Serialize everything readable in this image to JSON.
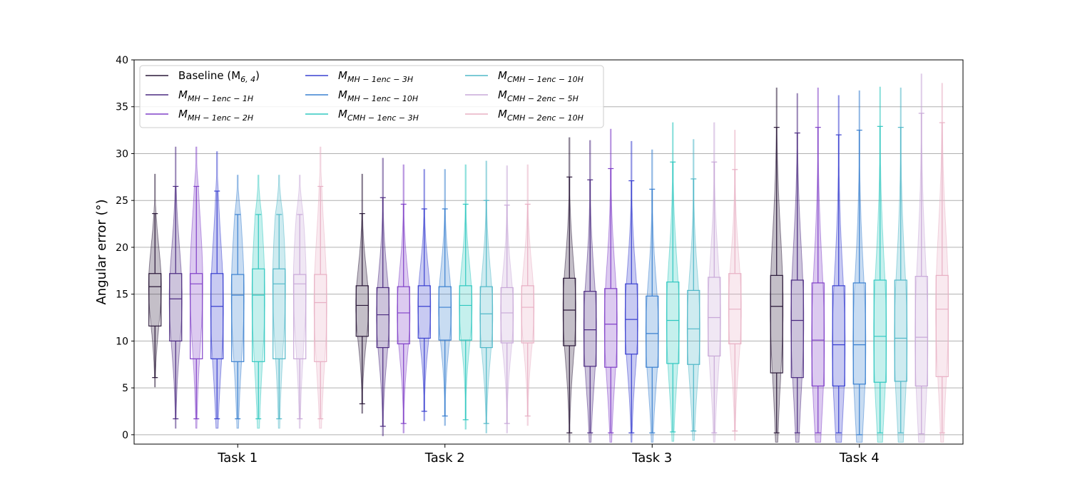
{
  "chart_data": {
    "type": "box_violin",
    "title": "",
    "xlabel": "",
    "ylabel": "Angular error (°)",
    "ylim": [
      -1,
      40
    ],
    "yticks": [
      0,
      5,
      10,
      15,
      20,
      25,
      30,
      35,
      40
    ],
    "grid": "y",
    "legend_position": "top-left",
    "categories": [
      "Task 1",
      "Task 2",
      "Task 3",
      "Task 4"
    ],
    "series": [
      {
        "name": "Baseline ($M_{6,4}$)",
        "legend_main": "Baseline (M",
        "legend_sub": "6, 4",
        "legend_tail": ")",
        "color": "#2a1838",
        "boxes": [
          {
            "min": 6.1,
            "q1": 11.6,
            "median": 15.8,
            "q3": 17.2,
            "max": 23.6
          },
          {
            "min": 3.3,
            "q1": 10.5,
            "median": 13.8,
            "q3": 15.9,
            "max": 23.6
          },
          {
            "min": 0.2,
            "q1": 9.5,
            "median": 13.3,
            "q3": 16.7,
            "max": 27.5
          },
          {
            "min": 0.2,
            "q1": 6.6,
            "median": 13.7,
            "q3": 17.0,
            "max": 32.8
          }
        ]
      },
      {
        "name": "$M_{MH-1enc-1H}$",
        "legend_main": "M",
        "legend_sub": "MH − 1enc − 1H",
        "legend_tail": "",
        "color": "#4b2a80",
        "boxes": [
          {
            "min": 1.7,
            "q1": 10.0,
            "median": 14.5,
            "q3": 17.2,
            "max": 26.5
          },
          {
            "min": 0.9,
            "q1": 9.3,
            "median": 12.8,
            "q3": 15.7,
            "max": 25.3
          },
          {
            "min": 0.2,
            "q1": 7.3,
            "median": 11.2,
            "q3": 15.3,
            "max": 27.2
          },
          {
            "min": 0.2,
            "q1": 6.1,
            "median": 12.2,
            "q3": 16.5,
            "max": 32.2
          }
        ]
      },
      {
        "name": "$M_{MH-1enc-2H}$",
        "legend_main": "M",
        "legend_sub": "MH − 1enc − 2H",
        "legend_tail": "",
        "color": "#8040c8",
        "boxes": [
          {
            "min": 1.7,
            "q1": 8.1,
            "median": 16.1,
            "q3": 17.2,
            "max": 26.5
          },
          {
            "min": 1.2,
            "q1": 9.7,
            "median": 13.0,
            "q3": 15.8,
            "max": 24.6
          },
          {
            "min": 0.2,
            "q1": 7.2,
            "median": 11.8,
            "q3": 15.6,
            "max": 28.4
          },
          {
            "min": 0.2,
            "q1": 5.2,
            "median": 10.1,
            "q3": 16.2,
            "max": 32.8
          }
        ]
      },
      {
        "name": "$M_{MH-1enc-3H}$",
        "legend_main": "M",
        "legend_sub": "MH − 1enc − 3H",
        "legend_tail": "",
        "color": "#3a40d0",
        "boxes": [
          {
            "min": 1.7,
            "q1": 8.1,
            "median": 13.7,
            "q3": 17.2,
            "max": 26.0
          },
          {
            "min": 2.5,
            "q1": 10.3,
            "median": 13.7,
            "q3": 15.9,
            "max": 24.1
          },
          {
            "min": 0.2,
            "q1": 8.6,
            "median": 12.3,
            "q3": 16.1,
            "max": 27.1
          },
          {
            "min": 0.2,
            "q1": 5.2,
            "median": 9.6,
            "q3": 15.9,
            "max": 32.0
          }
        ]
      },
      {
        "name": "$M_{MH-1enc-10H}$",
        "legend_main": "M",
        "legend_sub": "MH − 1enc − 10H",
        "legend_tail": "",
        "color": "#3a80d0",
        "boxes": [
          {
            "min": 1.7,
            "q1": 7.8,
            "median": 14.9,
            "q3": 17.1,
            "max": 23.5
          },
          {
            "min": 2.0,
            "q1": 10.1,
            "median": 13.6,
            "q3": 15.8,
            "max": 24.1
          },
          {
            "min": 0.2,
            "q1": 7.2,
            "median": 10.8,
            "q3": 14.8,
            "max": 26.2
          },
          {
            "min": 0.0,
            "q1": 5.4,
            "median": 9.6,
            "q3": 16.2,
            "max": 32.5
          }
        ]
      },
      {
        "name": "$M_{CMH-1enc-3H}$",
        "legend_main": "M",
        "legend_sub": "CMH − 1enc − 3H",
        "legend_tail": "",
        "color": "#30c8c0",
        "boxes": [
          {
            "min": 1.7,
            "q1": 7.8,
            "median": 14.9,
            "q3": 17.7,
            "max": 23.5
          },
          {
            "min": 1.6,
            "q1": 10.1,
            "median": 13.8,
            "q3": 15.9,
            "max": 24.6
          },
          {
            "min": 0.3,
            "q1": 7.6,
            "median": 12.2,
            "q3": 16.3,
            "max": 29.1
          },
          {
            "min": 0.2,
            "q1": 5.6,
            "median": 10.5,
            "q3": 16.5,
            "max": 32.9
          }
        ]
      },
      {
        "name": "$M_{CMH-1enc-10H}$",
        "legend_main": "M",
        "legend_sub": "CMH − 1enc − 10H",
        "legend_tail": "",
        "color": "#50b8c8",
        "boxes": [
          {
            "min": 1.7,
            "q1": 8.1,
            "median": 16.1,
            "q3": 17.7,
            "max": 23.5
          },
          {
            "min": 1.2,
            "q1": 9.3,
            "median": 12.9,
            "q3": 15.8,
            "max": 25.0
          },
          {
            "min": 0.4,
            "q1": 7.5,
            "median": 11.3,
            "q3": 15.4,
            "max": 27.3
          },
          {
            "min": 0.2,
            "q1": 5.7,
            "median": 10.3,
            "q3": 16.5,
            "max": 32.8
          }
        ]
      },
      {
        "name": "$M_{CMH-2enc-5H}$",
        "legend_main": "M",
        "legend_sub": "CMH − 2enc − 5H",
        "legend_tail": "",
        "color": "#c8a8d8",
        "boxes": [
          {
            "min": 1.7,
            "q1": 8.1,
            "median": 16.1,
            "q3": 17.1,
            "max": 23.5
          },
          {
            "min": 1.2,
            "q1": 9.8,
            "median": 13.0,
            "q3": 15.7,
            "max": 24.5
          },
          {
            "min": 0.2,
            "q1": 8.4,
            "median": 12.5,
            "q3": 16.8,
            "max": 29.1
          },
          {
            "min": 0.1,
            "q1": 5.2,
            "median": 10.4,
            "q3": 16.9,
            "max": 34.3
          }
        ]
      },
      {
        "name": "$M_{CMH-2enc-10H}$",
        "legend_main": "M",
        "legend_sub": "CMH − 2enc − 10H",
        "legend_tail": "",
        "color": "#e8b0c4",
        "boxes": [
          {
            "min": 1.7,
            "q1": 7.8,
            "median": 14.1,
            "q3": 17.1,
            "max": 26.5
          },
          {
            "min": 2.0,
            "q1": 9.8,
            "median": 13.6,
            "q3": 15.9,
            "max": 24.6
          },
          {
            "min": 0.4,
            "q1": 9.7,
            "median": 13.4,
            "q3": 17.2,
            "max": 28.3
          },
          {
            "min": 0.2,
            "q1": 6.2,
            "median": 13.4,
            "q3": 17.0,
            "max": 33.3
          }
        ]
      }
    ]
  }
}
